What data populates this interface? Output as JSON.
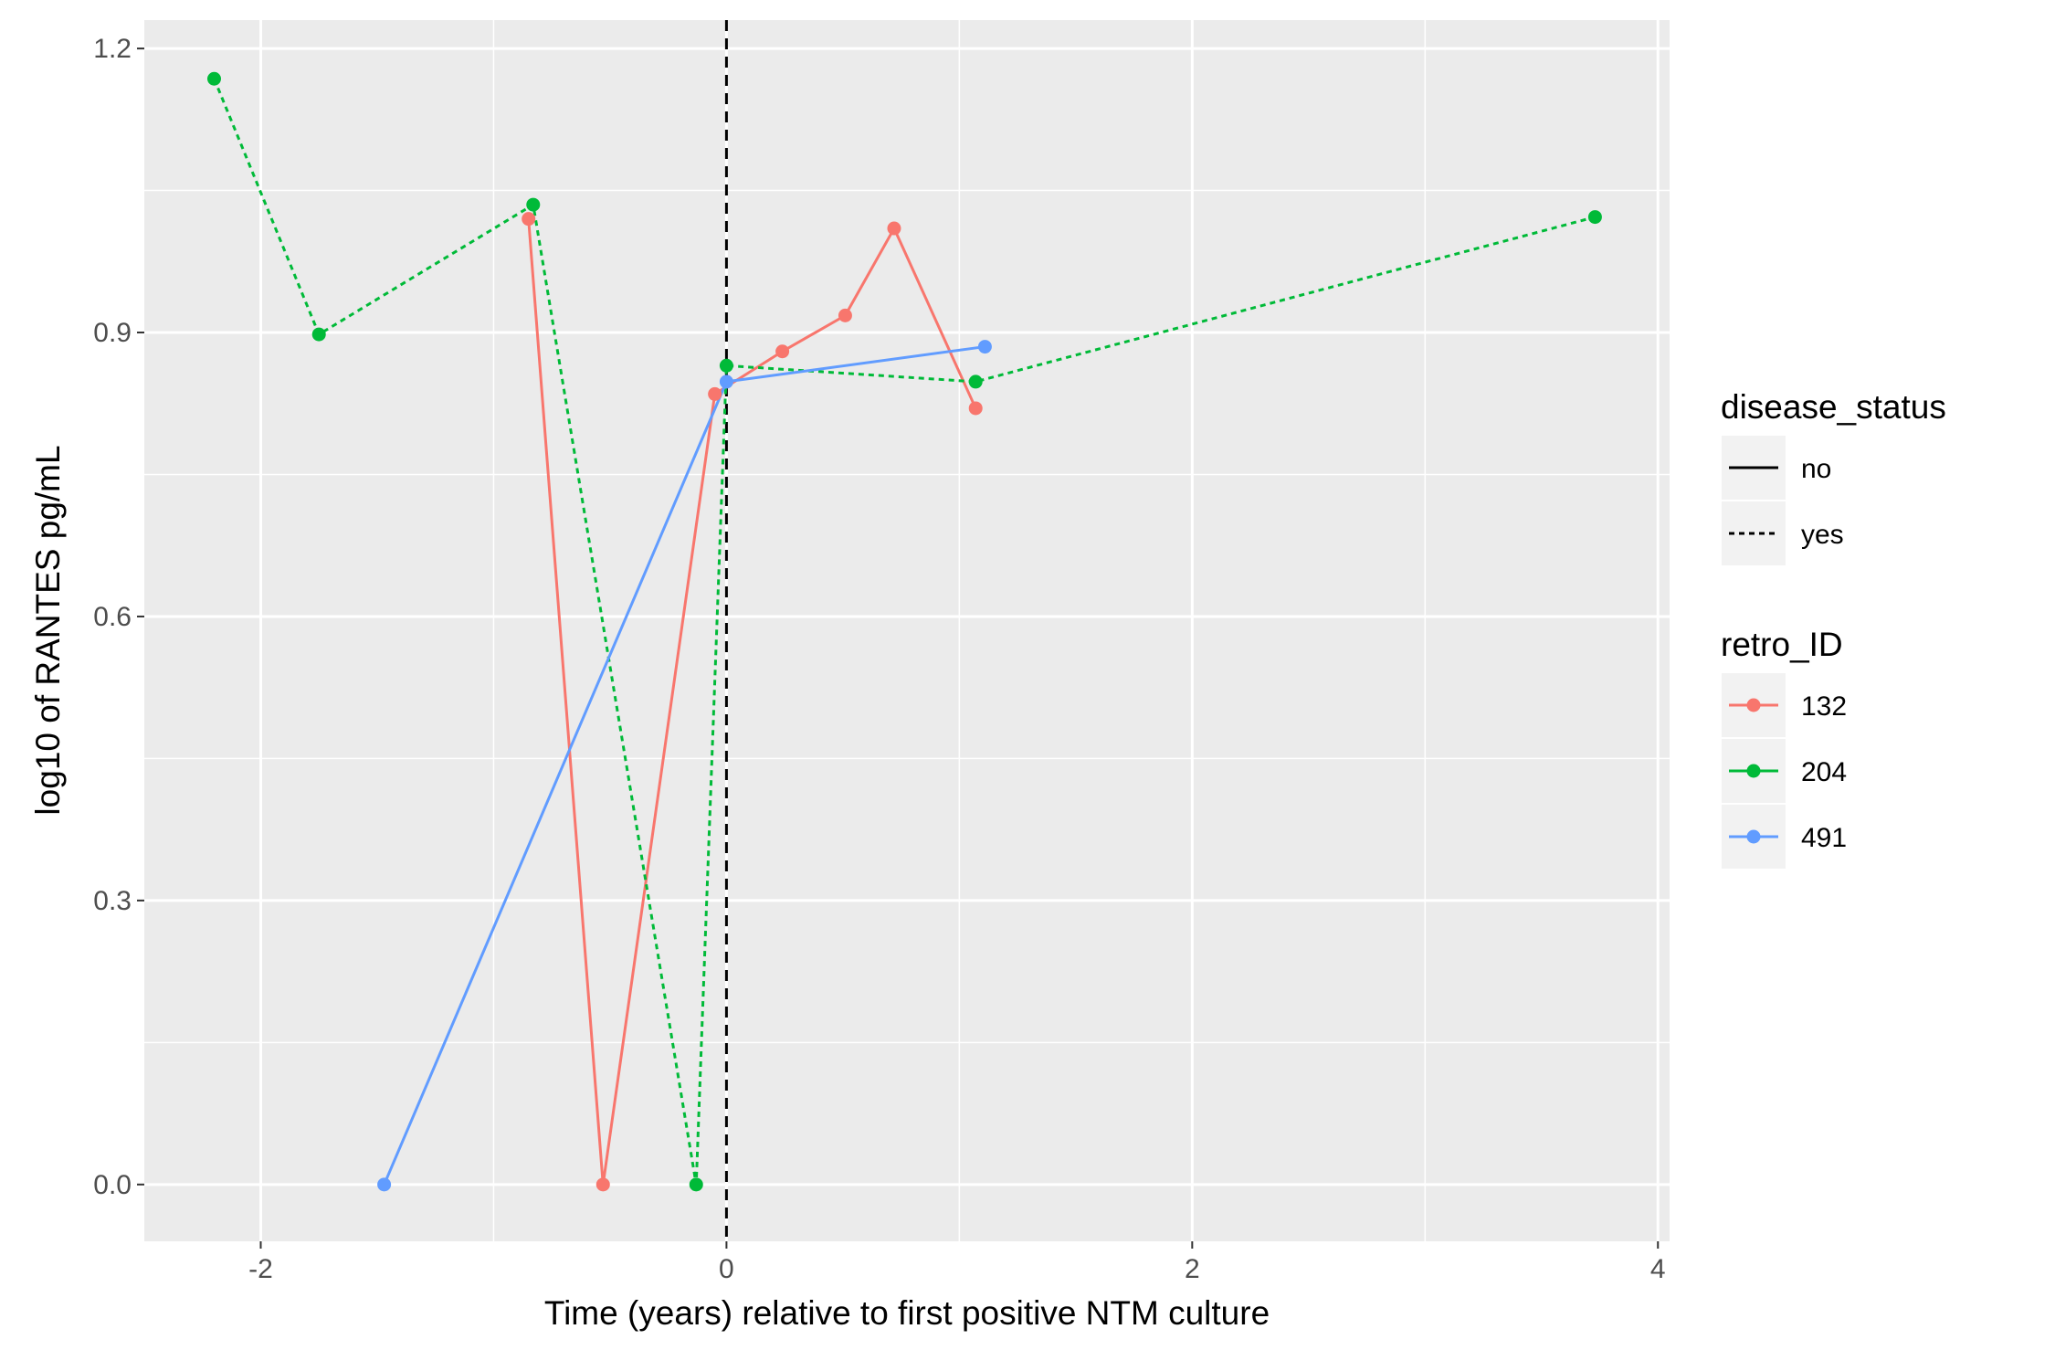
{
  "chart_data": {
    "type": "line",
    "title": "",
    "xlabel": "Time (years) relative to first positive NTM culture",
    "ylabel": "log10 of RANTES pg/mL",
    "xlim": [
      -2.5,
      4.05
    ],
    "ylim": [
      -0.06,
      1.23
    ],
    "x_ticks": [
      -2,
      0,
      2,
      4
    ],
    "x_tick_labels": [
      "-2",
      "0",
      "2",
      "4"
    ],
    "x_minor_ticks": [
      -1,
      1,
      3
    ],
    "y_ticks": [
      0.0,
      0.3,
      0.6,
      0.9,
      1.2
    ],
    "y_tick_labels": [
      "0.0",
      "0.3",
      "0.6",
      "0.9",
      "1.2"
    ],
    "y_minor_ticks": [
      0.15,
      0.45,
      0.75,
      1.05
    ],
    "grid": true,
    "panel_background": "#ebebeb",
    "grid_color": "#ffffff",
    "vline": {
      "x": 0,
      "linetype": "dashed",
      "color": "#000000"
    },
    "legends": [
      {
        "title": "disease_status",
        "position": "right",
        "entries": [
          {
            "label": "no",
            "linetype": "solid"
          },
          {
            "label": "yes",
            "linetype": "dashed"
          }
        ]
      },
      {
        "title": "retro_ID",
        "position": "right",
        "entries": [
          {
            "label": "132",
            "color": "#F8766D"
          },
          {
            "label": "204",
            "color": "#00BA38"
          },
          {
            "label": "491",
            "color": "#619CFF"
          }
        ]
      }
    ],
    "series": [
      {
        "name": "132",
        "color": "#F8766D",
        "disease_status": "no",
        "x": [
          -0.85,
          -0.53,
          -0.05,
          0.24,
          0.51,
          0.72,
          1.07
        ],
        "y": [
          1.02,
          0.0,
          0.835,
          0.88,
          0.918,
          1.01,
          0.82
        ]
      },
      {
        "name": "204",
        "color": "#00BA38",
        "disease_status": "yes",
        "x": [
          -2.2,
          -1.75,
          -0.83,
          -0.13,
          0.0,
          1.07,
          3.73
        ],
        "y": [
          1.168,
          0.898,
          1.035,
          0.0,
          0.865,
          0.848,
          1.022
        ]
      },
      {
        "name": "491",
        "color": "#619CFF",
        "disease_status": "no",
        "x": [
          -1.47,
          0.0,
          1.11
        ],
        "y": [
          0.0,
          0.848,
          0.885
        ]
      }
    ]
  }
}
